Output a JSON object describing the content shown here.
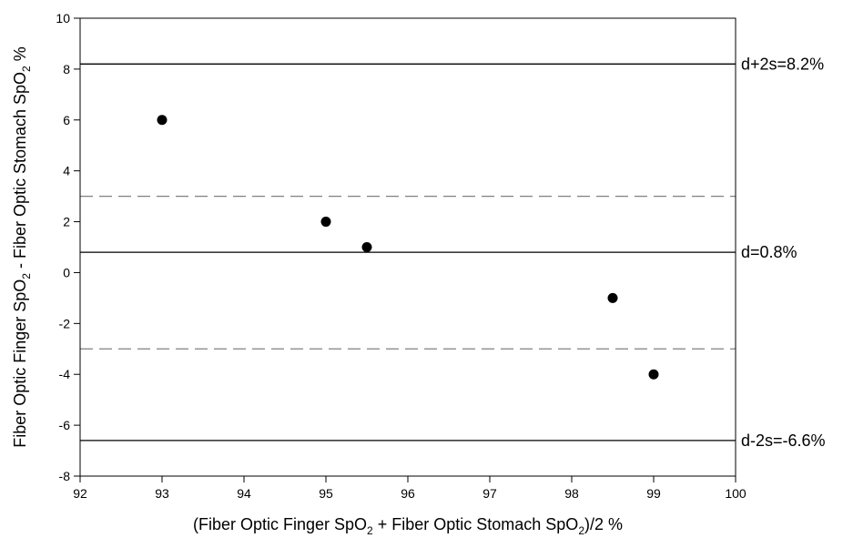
{
  "chart_data": {
    "type": "scatter",
    "xlabel": {
      "pre": "(Fiber Optic Finger SpO",
      "sub1": "2",
      "mid": " + Fiber Optic Stomach SpO",
      "sub2": "2",
      "post": ")/2 %"
    },
    "ylabel": {
      "pre": "Fiber Optic Finger SpO",
      "sub1": "2",
      "mid": " - Fiber Optic Stomach SpO",
      "sub2": "2",
      "post": " %"
    },
    "xlim": [
      92,
      100
    ],
    "ylim": [
      -8,
      10
    ],
    "xticks": [
      92,
      93,
      94,
      95,
      96,
      97,
      98,
      99,
      100
    ],
    "yticks": [
      -8,
      -6,
      -4,
      -2,
      0,
      2,
      4,
      6,
      8,
      10
    ],
    "points": [
      {
        "x": 93,
        "y": 6
      },
      {
        "x": 95,
        "y": 2
      },
      {
        "x": 95.5,
        "y": 1
      },
      {
        "x": 98.5,
        "y": -1
      },
      {
        "x": 99,
        "y": -4
      }
    ],
    "reference_lines": [
      {
        "y": 8.2,
        "style": "solid",
        "label": "d+2s=8.2%"
      },
      {
        "y": 0.8,
        "style": "solid",
        "label": "d=0.8%"
      },
      {
        "y": -6.6,
        "style": "solid",
        "label": "d-2s=-6.6%"
      },
      {
        "y": 3,
        "style": "dashed",
        "label": ""
      },
      {
        "y": -3,
        "style": "dashed",
        "label": ""
      }
    ],
    "grid": false,
    "colors": {
      "points": "#000000",
      "solid_line": "#000000",
      "dashed_line": "#808080",
      "axes": "#000000"
    }
  }
}
